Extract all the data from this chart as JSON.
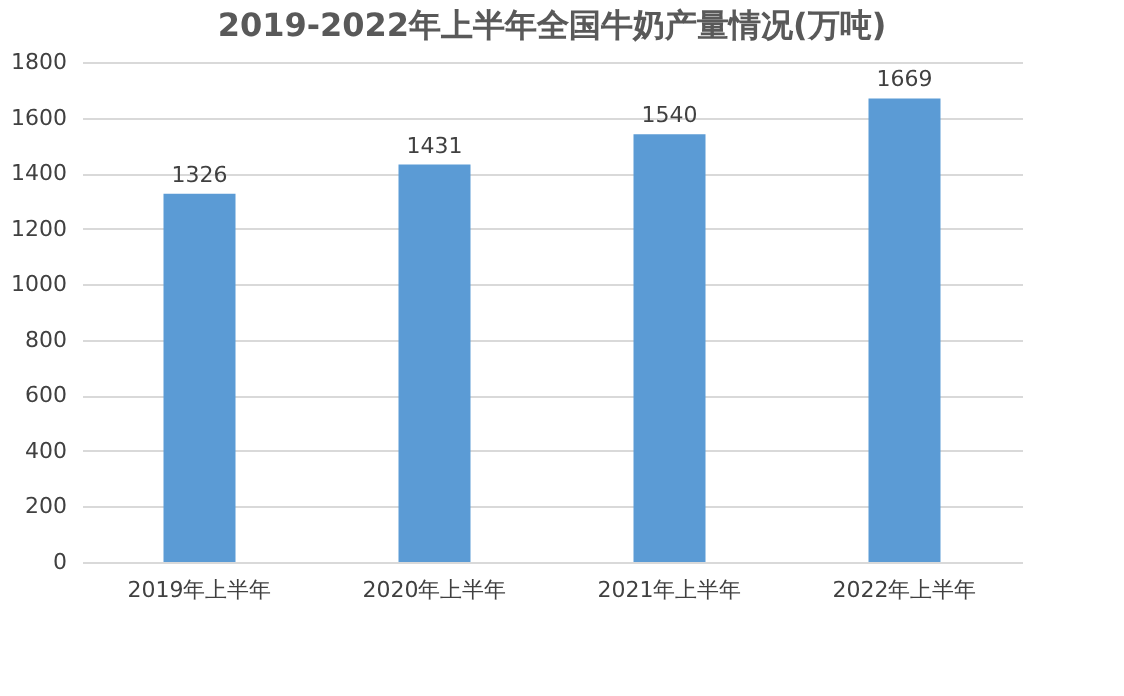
{
  "chart_data": {
    "type": "bar",
    "title": "2019-2022年上半年全国牛奶产量情况(万吨)",
    "categories": [
      "2019年上半年",
      "2020年上半年",
      "2021年上半年",
      "2022年上半年"
    ],
    "values": [
      1326,
      1431,
      1540,
      1669
    ],
    "color": "#5b9bd5",
    "ylim": [
      0,
      1800
    ],
    "yticks": [
      0,
      200,
      400,
      600,
      800,
      1000,
      1200,
      1400,
      1600,
      1800
    ],
    "grid": "y",
    "data_labels": true
  }
}
